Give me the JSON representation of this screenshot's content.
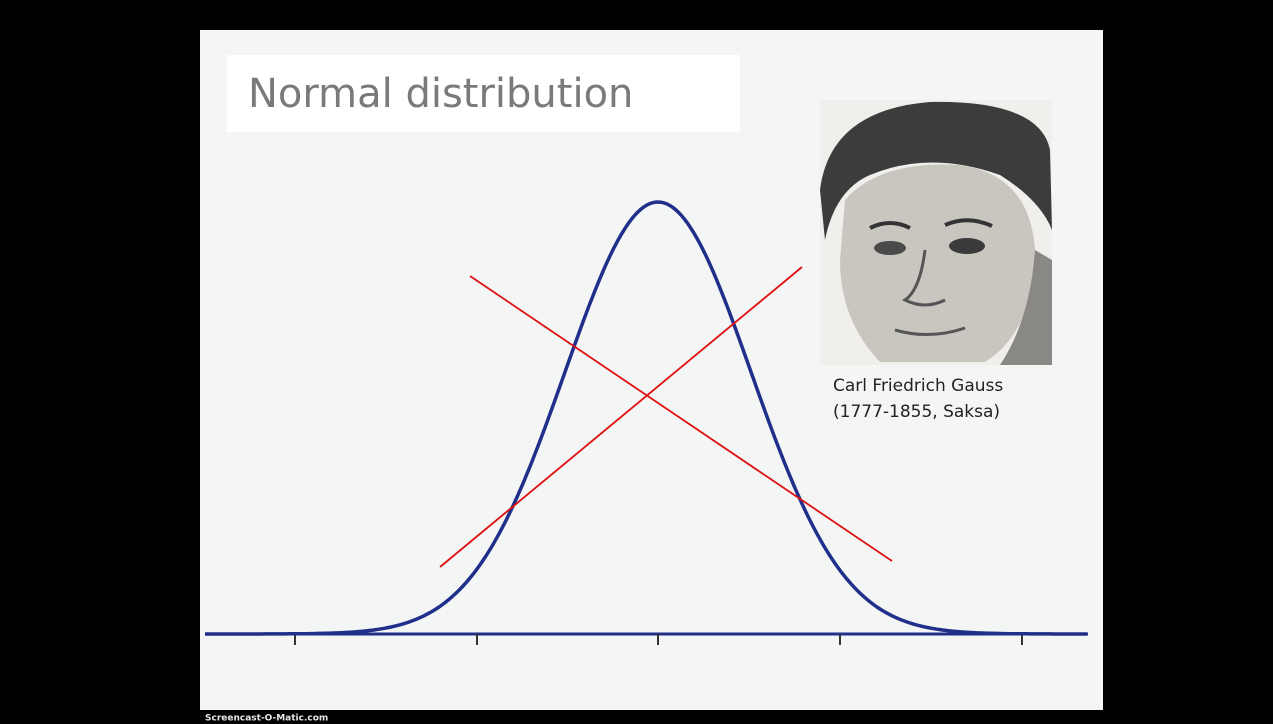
{
  "slide": {
    "title": "Normal distribution",
    "caption": {
      "name": "Carl Friedrich Gauss",
      "dates": "(1777-1855, Saksa)"
    }
  },
  "watermark": "Screencast-O-Matic.com"
}
